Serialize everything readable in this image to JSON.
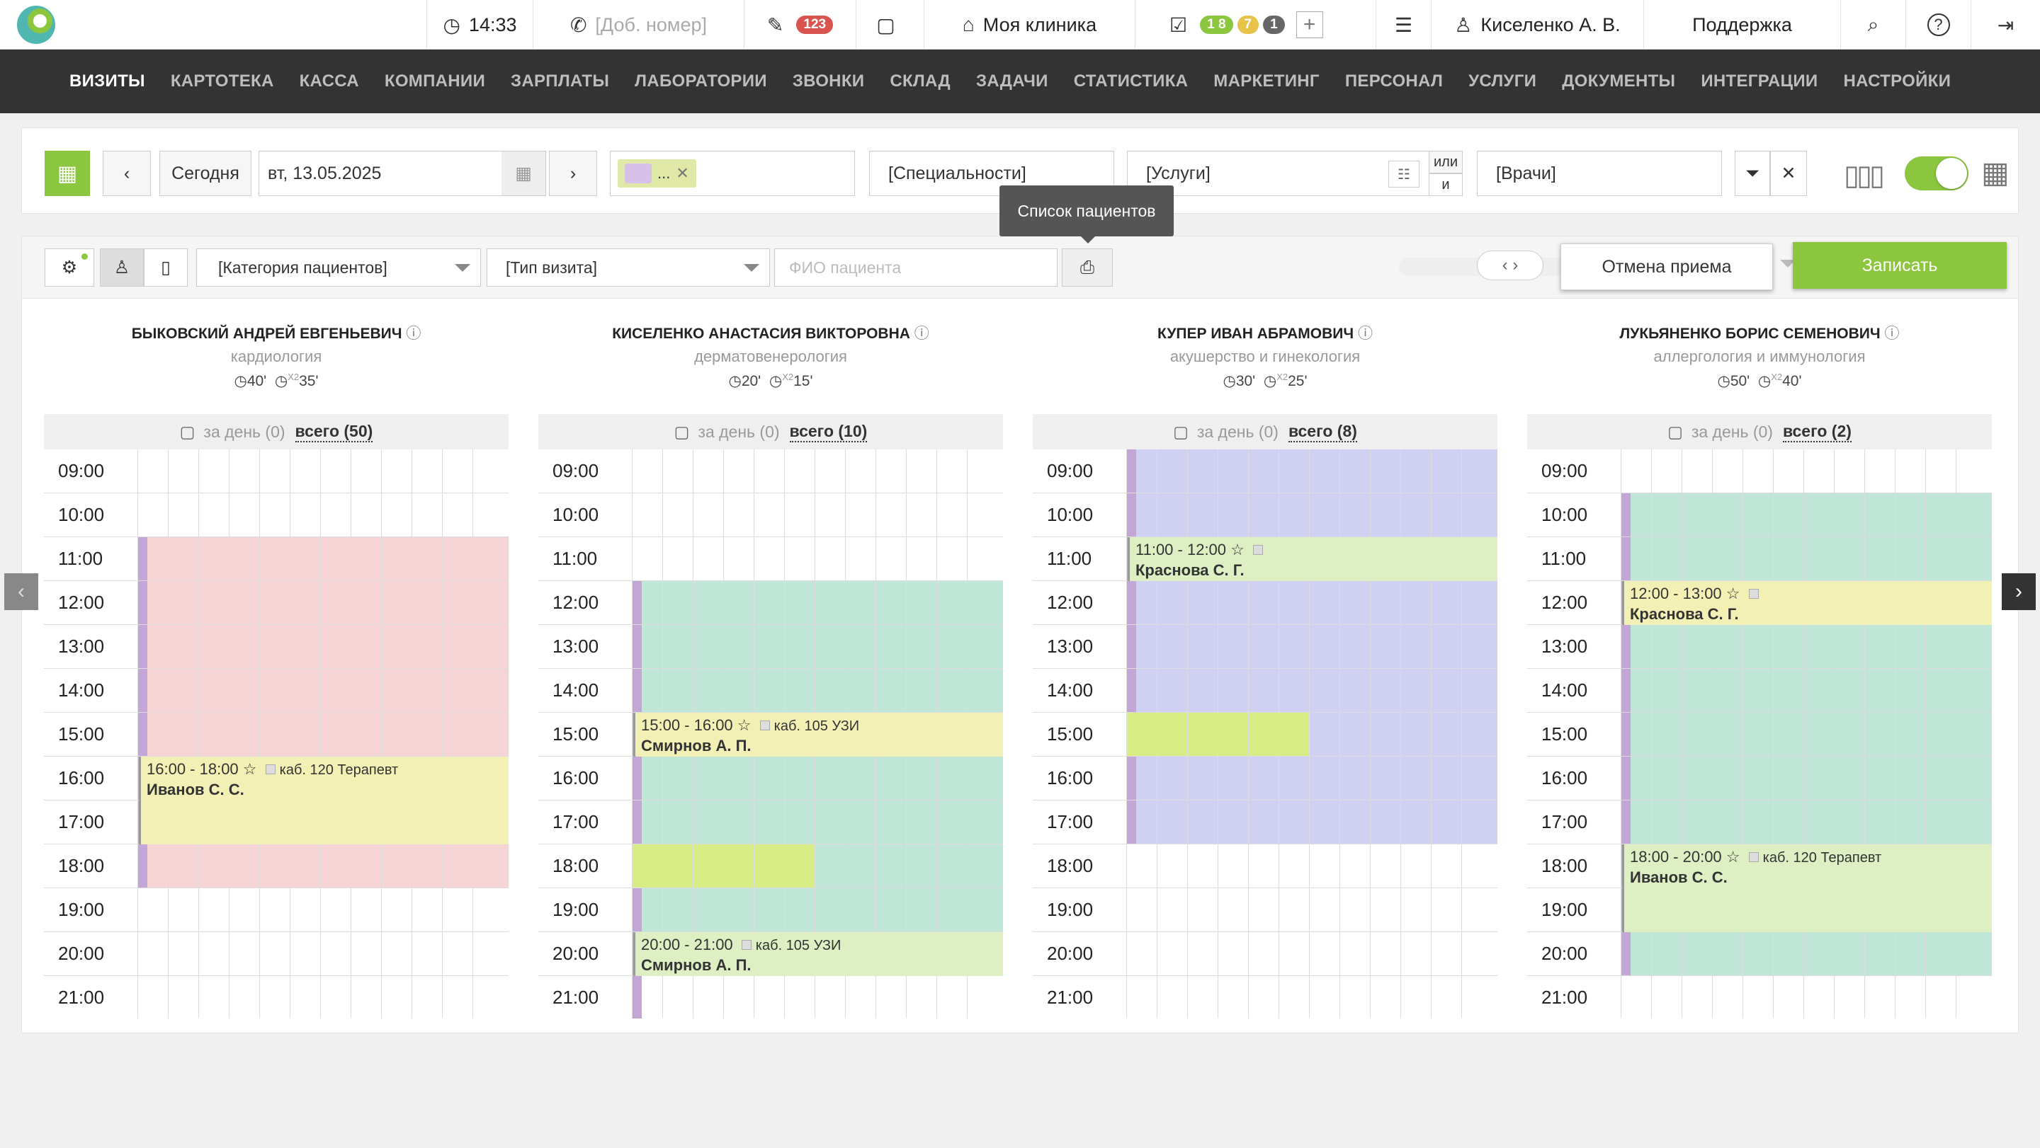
{
  "topbar": {
    "time": "14:33",
    "phone_placeholder": "[Доб. номер]",
    "notes_count": "123",
    "clinic": "Моя клиника",
    "tasks_badges": [
      "1 8",
      "7",
      "1"
    ],
    "user": "Киселенко А. В.",
    "support": "Поддержка"
  },
  "nav": [
    "ВИЗИТЫ",
    "КАРТОТЕКА",
    "КАССА",
    "КОМПАНИИ",
    "ЗАРПЛАТЫ",
    "ЛАБОРАТОРИИ",
    "ЗВОНКИ",
    "СКЛАД",
    "ЗАДАЧИ",
    "СТАТИСТИКА",
    "МАРКЕТИНГ",
    "ПЕРСОНАЛ",
    "УСЛУГИ",
    "ДОКУМЕНТЫ",
    "ИНТЕГРАЦИИ",
    "НАСТРОЙКИ"
  ],
  "filters": {
    "today": "Сегодня",
    "date": "вт, 13.05.2025",
    "tag_chip": "...",
    "specialties": "[Специальности]",
    "services": "[Услуги]",
    "or": "или",
    "and": "и",
    "doctors": "[Врачи]"
  },
  "toolbar": {
    "patient_category": "[Категория пациентов]",
    "visit_type": "[Тип визита]",
    "patient_search_placeholder": "ФИО пациента",
    "tooltip": "Список пациентов",
    "cancel": "Отмена приема",
    "book": "Записать"
  },
  "hours": [
    "09:00",
    "10:00",
    "11:00",
    "12:00",
    "13:00",
    "14:00",
    "15:00",
    "16:00",
    "17:00",
    "18:00",
    "19:00",
    "20:00",
    "21:00"
  ],
  "doctors": [
    {
      "name": "БЫКОВСКИЙ АНДРЕЙ ЕВГЕНЬЕВИЧ",
      "specialty": "кардиология",
      "duration": "40'",
      "duration2": "35'",
      "day_label": "за день (0)",
      "total": "всего (50)",
      "appointments": [
        {
          "time": "16:00 - 18:00 ☆",
          "room": "каб. 120 Терапевт",
          "patient": "Иванов С. С."
        }
      ]
    },
    {
      "name": "КИСЕЛЕНКО АНАСТАСИЯ ВИКТОРОВНА",
      "specialty": "дерматовенерология",
      "duration": "20'",
      "duration2": "15'",
      "day_label": "за день (0)",
      "total": "всего (10)",
      "appointments": [
        {
          "time": "15:00 - 16:00 ☆",
          "room": "каб. 105 УЗИ",
          "patient": "Смирнов А. П."
        },
        {
          "time": "20:00 - 21:00",
          "room": "каб. 105 УЗИ",
          "patient": "Смирнов А. П."
        }
      ]
    },
    {
      "name": "КУПЕР ИВАН АБРАМОВИЧ",
      "specialty": "акушерство и гинекология",
      "duration": "30'",
      "duration2": "25'",
      "day_label": "за день (0)",
      "total": "всего (8)",
      "appointments": [
        {
          "time": "11:00 - 12:00 ☆",
          "room": "",
          "patient": "Краснова С. Г."
        }
      ]
    },
    {
      "name": "ЛУКЬЯНЕНКО БОРИС СЕМЕНОВИЧ",
      "specialty": "аллергология и иммунология",
      "duration": "50'",
      "duration2": "40'",
      "day_label": "за день (0)",
      "total": "всего (2)",
      "appointments": [
        {
          "time": "12:00 - 13:00 ☆",
          "room": "",
          "patient": "Краснова С. Г."
        },
        {
          "time": "18:00 - 20:00 ☆",
          "room": "каб. 120 Терапевт",
          "patient": "Иванов С. С."
        }
      ]
    }
  ],
  "colors": {
    "green": "#8cc63f",
    "pink": "#f6d3d4",
    "teal": "#bfe6d6",
    "lavender": "#cfd0f2",
    "yellow": "#f3f0b5",
    "lime": "#d8ec86",
    "purple": "#c3a6d6",
    "dark": "#333333"
  }
}
